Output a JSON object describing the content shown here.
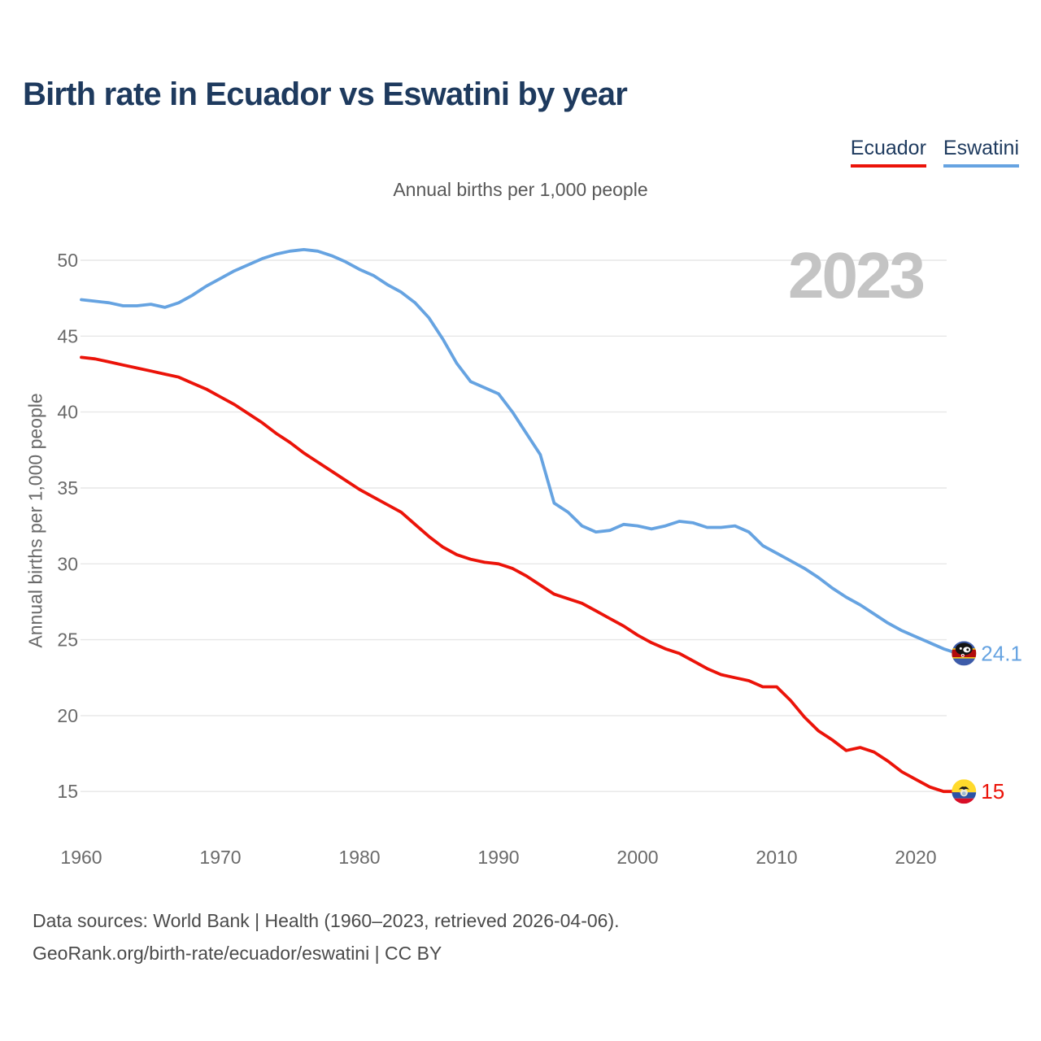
{
  "title": "Birth rate in Ecuador vs Eswatini by year",
  "subtitle": "Annual births per 1,000 people",
  "watermark": "2023",
  "legend": [
    {
      "label": "Ecuador",
      "color": "#eb1309"
    },
    {
      "label": "Eswatini",
      "color": "#66a3e1"
    }
  ],
  "footer": {
    "line1": "Data sources: World Bank | Health (1960–2023, retrieved 2026-04-06).",
    "line2": "GeoRank.org/birth-rate/ecuador/eswatini | CC BY"
  },
  "chart_data": {
    "type": "line",
    "title": "Birth rate in Ecuador vs Eswatini by year",
    "ylabel": "Annual births per 1,000 people",
    "xlabel": "",
    "grid": "horizontal",
    "grid_color": "#e7e7e7",
    "legend_position": "top-right",
    "xticks": [
      1960,
      1970,
      1980,
      1990,
      2000,
      2010,
      2020
    ],
    "yticks": [
      15,
      20,
      25,
      30,
      35,
      40,
      45,
      50
    ],
    "xlim": [
      1960,
      2023
    ],
    "ylim": [
      13.5,
      52
    ],
    "x": [
      1960,
      1961,
      1962,
      1963,
      1964,
      1965,
      1966,
      1967,
      1968,
      1969,
      1970,
      1971,
      1972,
      1973,
      1974,
      1975,
      1976,
      1977,
      1978,
      1979,
      1980,
      1981,
      1982,
      1983,
      1984,
      1985,
      1986,
      1987,
      1988,
      1989,
      1990,
      1991,
      1992,
      1993,
      1994,
      1995,
      1996,
      1997,
      1998,
      1999,
      2000,
      2001,
      2002,
      2003,
      2004,
      2005,
      2006,
      2007,
      2008,
      2009,
      2010,
      2011,
      2012,
      2013,
      2014,
      2015,
      2016,
      2017,
      2018,
      2019,
      2020,
      2021,
      2022,
      2023
    ],
    "series": [
      {
        "name": "Ecuador",
        "color": "#eb1309",
        "end_label": "15",
        "end_value": 15,
        "flag_icon": "ecuador-flag-icon",
        "values": [
          43.6,
          43.5,
          43.3,
          43.1,
          42.9,
          42.7,
          42.5,
          42.3,
          41.9,
          41.5,
          41.0,
          40.5,
          39.9,
          39.3,
          38.6,
          38.0,
          37.3,
          36.7,
          36.1,
          35.5,
          34.9,
          34.4,
          33.9,
          33.4,
          32.6,
          31.8,
          31.1,
          30.6,
          30.3,
          30.1,
          30.0,
          29.7,
          29.2,
          28.6,
          28.0,
          27.7,
          27.4,
          26.9,
          26.4,
          25.9,
          25.3,
          24.8,
          24.4,
          24.1,
          23.6,
          23.1,
          22.7,
          22.5,
          22.3,
          21.9,
          21.9,
          21.0,
          19.9,
          19.0,
          18.4,
          17.7,
          17.9,
          17.6,
          17.0,
          16.3,
          15.8,
          15.3,
          15.0,
          15.0
        ]
      },
      {
        "name": "Eswatini",
        "color": "#66a3e1",
        "end_label": "24.1",
        "end_value": 24.1,
        "flag_icon": "eswatini-flag-icon",
        "values": [
          47.4,
          47.3,
          47.2,
          47.0,
          47.0,
          47.1,
          46.9,
          47.2,
          47.7,
          48.3,
          48.8,
          49.3,
          49.7,
          50.1,
          50.4,
          50.6,
          50.7,
          50.6,
          50.3,
          49.9,
          49.4,
          49.0,
          48.4,
          47.9,
          47.2,
          46.2,
          44.8,
          43.2,
          42.0,
          41.6,
          41.2,
          40.0,
          38.6,
          37.2,
          34.0,
          33.4,
          32.5,
          32.1,
          32.2,
          32.6,
          32.5,
          32.3,
          32.5,
          32.8,
          32.7,
          32.4,
          32.4,
          32.5,
          32.1,
          31.2,
          30.7,
          30.2,
          29.7,
          29.1,
          28.4,
          27.8,
          27.3,
          26.7,
          26.1,
          25.6,
          25.2,
          24.8,
          24.4,
          24.1
        ]
      }
    ]
  }
}
